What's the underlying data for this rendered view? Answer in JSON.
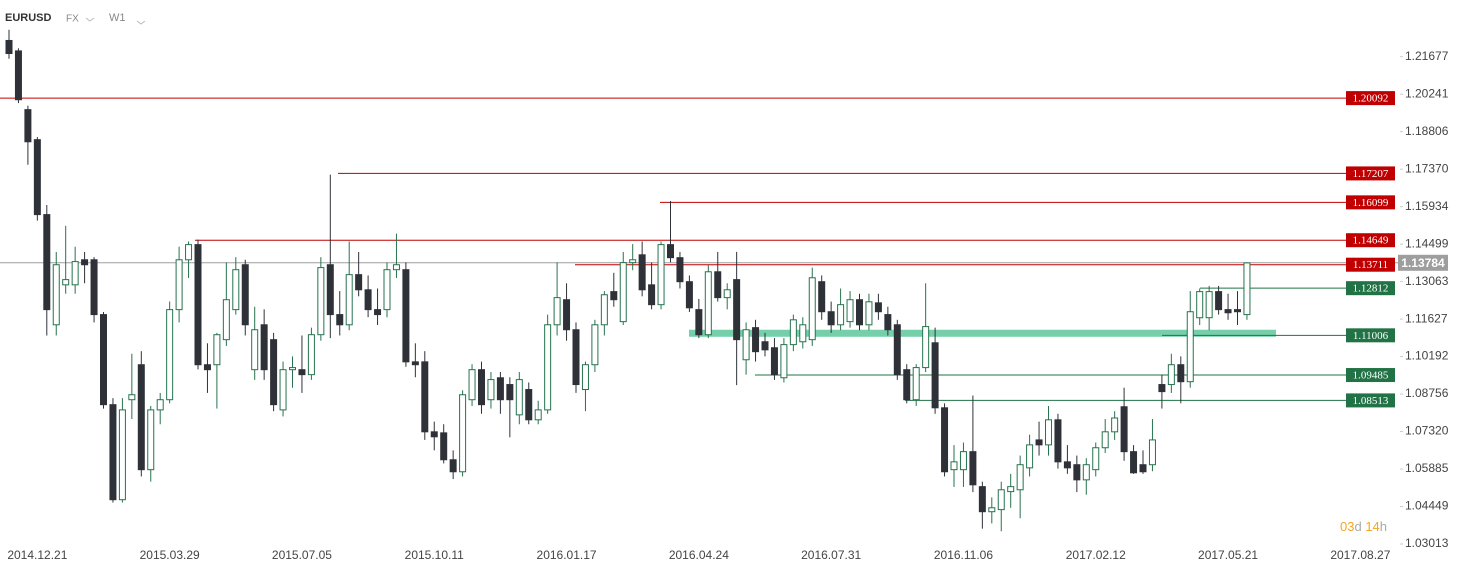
{
  "chart_data": {
    "type": "candlestick",
    "symbol": "EURUSD",
    "market": "FX",
    "interval": "W1",
    "countdown": "03d 14h",
    "categories": [
      null,
      null,
      null,
      "2014.12.21",
      null,
      null,
      null,
      null,
      null,
      null,
      null,
      null,
      null,
      null,
      null,
      null,
      null,
      "2015.03.29",
      null,
      null,
      null,
      null,
      null,
      null,
      null,
      null,
      null,
      null,
      null,
      null,
      null,
      "2015.07.05",
      null,
      null,
      null,
      null,
      null,
      null,
      null,
      null,
      null,
      null,
      null,
      null,
      null,
      "2015.10.11",
      null,
      null,
      null,
      null,
      null,
      null,
      null,
      null,
      null,
      null,
      null,
      null,
      null,
      "2016.01.17",
      null,
      null,
      null,
      null,
      null,
      null,
      null,
      null,
      null,
      null,
      null,
      null,
      null,
      "2016.04.24",
      null,
      null,
      null,
      null,
      null,
      null,
      null,
      null,
      null,
      null,
      null,
      null,
      null,
      "2016.07.31",
      null,
      null,
      null,
      null,
      null,
      null,
      null,
      null,
      null,
      null,
      null,
      null,
      null,
      "2016.11.06",
      null,
      null,
      null,
      null,
      null,
      null,
      null,
      null,
      null,
      null,
      null,
      null,
      null,
      "2017.02.12",
      null,
      null,
      null,
      null,
      null,
      null,
      null,
      null,
      null,
      null,
      null,
      null,
      null,
      "2017.05.21",
      null,
      null,
      null,
      null,
      null,
      null,
      null,
      null,
      null,
      null,
      null,
      null,
      null,
      "2017.08.27"
    ],
    "open": [
      1.223,
      1.219,
      1.1965,
      1.185,
      1.1563,
      1.1141,
      1.1294,
      1.1294,
      1.139,
      1.139,
      1.118,
      1.0835,
      1.0471,
      1.0854,
      1.0988,
      1.0586,
      1.0815,
      1.0854,
      1.1199,
      1.139,
      1.1448,
      1.0988,
      1.0988,
      1.1084,
      1.1199,
      1.1371,
      1.0969,
      1.1141,
      1.1084,
      1.0815,
      1.0969,
      1.0969,
      1.095,
      1.1103,
      1.1371,
      1.118,
      1.1141,
      1.1333,
      1.1275,
      1.1199,
      1.1199,
      1.1352,
      1.1352,
      1.0999,
      1.0999,
      1.0731,
      1.0727,
      1.0624,
      1.0578,
      1.0854,
      1.0969,
      1.0854,
      1.0938,
      1.0912,
      1.0796,
      1.0893,
      1.0777,
      1.0815,
      1.1141,
      1.1237,
      1.1122,
      1.0893,
      1.0988,
      1.1141,
      1.1268,
      1.1153,
      1.1379,
      1.1409,
      1.1294,
      1.1218,
      1.1448,
      1.1398,
      1.1306,
      1.1199,
      1.1103,
      1.1344,
      1.1245,
      1.1314,
      1.1007,
      1.113,
      1.1076,
      1.1053,
      1.0938,
      1.1065,
      1.1076,
      1.1084,
      1.1306,
      1.1191,
      1.1141,
      1.1153,
      1.1237,
      1.1141,
      1.1225,
      1.118,
      1.1141,
      1.0969,
      1.0854,
      1.0977,
      1.1072,
      1.0823,
      1.0586,
      1.0586,
      1.0655,
      1.0521,
      1.0425,
      1.0433,
      1.0502,
      1.0509,
      1.0593,
      1.07,
      1.0681,
      1.0777,
      1.0616,
      1.0605,
      1.0547,
      1.0586,
      1.067,
      1.0731,
      1.0827,
      1.0655,
      1.0605,
      1.0605,
      1.0912,
      1.0912,
      1.0988,
      1.0923,
      1.1168,
      1.1168,
      1.1268,
      1.1199,
      1.1199,
      1.118,
      null,
      null,
      null,
      null,
      null,
      null,
      null,
      null,
      null,
      null,
      null,
      null
    ],
    "high": [
      1.2271,
      1.22,
      1.198,
      1.186,
      1.16,
      1.142,
      1.152,
      1.144,
      1.142,
      1.14,
      1.119,
      1.086,
      1.086,
      1.103,
      1.104,
      1.083,
      1.088,
      1.123,
      1.144,
      1.146,
      1.1467,
      1.107,
      1.111,
      1.138,
      1.14,
      1.139,
      1.121,
      1.12,
      1.111,
      1.1,
      1.102,
      1.11,
      1.113,
      1.14,
      1.1716,
      1.127,
      1.146,
      1.142,
      1.133,
      1.128,
      1.138,
      1.149,
      1.138,
      1.107,
      1.104,
      1.077,
      1.076,
      1.066,
      1.089,
      1.099,
      1.1,
      1.096,
      1.096,
      1.094,
      1.096,
      1.092,
      1.085,
      1.118,
      1.138,
      1.13,
      1.115,
      1.1,
      1.116,
      1.127,
      1.134,
      1.142,
      1.145,
      1.146,
      1.138,
      1.146,
      1.1615,
      1.142,
      1.133,
      1.124,
      1.137,
      1.142,
      1.13,
      1.142,
      1.115,
      1.116,
      1.111,
      1.109,
      1.109,
      1.118,
      1.117,
      1.136,
      1.133,
      1.123,
      1.128,
      1.127,
      1.126,
      1.126,
      1.126,
      1.121,
      1.116,
      1.099,
      1.099,
      1.13,
      1.113,
      1.084,
      1.068,
      1.069,
      1.087,
      1.054,
      1.048,
      1.054,
      1.057,
      1.064,
      1.072,
      1.077,
      1.083,
      1.08,
      1.068,
      1.064,
      1.063,
      1.069,
      1.078,
      1.081,
      1.09,
      1.068,
      1.066,
      1.078,
      1.095,
      1.103,
      1.102,
      1.127,
      1.128,
      1.129,
      1.129,
      1.126,
      1.127,
      1.138,
      null,
      null,
      null,
      null,
      null,
      null,
      null,
      null,
      null,
      null,
      null,
      null
    ],
    "low": [
      1.216,
      1.199,
      1.1754,
      1.154,
      1.11,
      1.11,
      1.126,
      1.126,
      1.13,
      1.115,
      1.082,
      1.046,
      1.046,
      1.078,
      1.056,
      1.054,
      1.076,
      1.084,
      1.115,
      1.132,
      1.097,
      1.088,
      1.082,
      1.106,
      1.118,
      1.11,
      1.093,
      1.093,
      1.081,
      1.079,
      1.09,
      1.088,
      1.093,
      1.108,
      1.109,
      1.11,
      1.112,
      1.125,
      1.117,
      1.114,
      1.117,
      1.132,
      1.098,
      1.094,
      1.07,
      1.066,
      1.061,
      1.055,
      1.056,
      1.083,
      1.08,
      1.082,
      1.08,
      1.071,
      1.076,
      1.076,
      1.076,
      1.08,
      1.11,
      1.108,
      1.088,
      1.081,
      1.096,
      1.11,
      1.121,
      1.114,
      1.135,
      1.125,
      1.12,
      1.12,
      1.138,
      1.128,
      1.119,
      1.109,
      1.109,
      1.123,
      1.12,
      1.091,
      1.095,
      1.1,
      1.102,
      1.093,
      1.092,
      1.104,
      1.105,
      1.106,
      1.116,
      1.111,
      1.112,
      1.113,
      1.112,
      1.112,
      1.116,
      1.11,
      1.093,
      1.084,
      1.083,
      1.096,
      1.08,
      1.056,
      1.052,
      1.052,
      1.05,
      1.036,
      1.038,
      1.035,
      1.044,
      1.04,
      1.056,
      1.064,
      1.064,
      1.059,
      1.057,
      1.05,
      1.049,
      1.056,
      1.065,
      1.07,
      1.062,
      1.057,
      1.057,
      1.058,
      1.082,
      1.088,
      1.084,
      1.09,
      1.114,
      1.112,
      1.118,
      1.116,
      1.114,
      1.116,
      null,
      null,
      null,
      null,
      null,
      null,
      null,
      null,
      null,
      null,
      null,
      null
    ],
    "close": [
      1.218,
      1.2003,
      1.1842,
      1.1563,
      1.1199,
      1.1371,
      1.1314,
      1.1383,
      1.1371,
      1.118,
      1.0835,
      1.0471,
      1.0815,
      1.0873,
      1.0586,
      1.0815,
      1.0854,
      1.1199,
      1.139,
      1.1448,
      1.0988,
      1.0969,
      1.1103,
      1.1237,
      1.1352,
      1.1141,
      1.1122,
      1.0969,
      1.0835,
      1.0969,
      1.0977,
      1.095,
      1.1103,
      1.136,
      1.118,
      1.1141,
      1.1333,
      1.1275,
      1.1199,
      1.118,
      1.1352,
      1.1371,
      1.0999,
      1.0988,
      1.0731,
      1.0712,
      1.0624,
      1.0578,
      1.0873,
      1.0969,
      1.0835,
      1.0931,
      1.0854,
      1.0854,
      1.0931,
      1.0777,
      1.0815,
      1.1141,
      1.1245,
      1.1122,
      1.0912,
      1.0988,
      1.1141,
      1.1256,
      1.1237,
      1.1379,
      1.139,
      1.1275,
      1.1218,
      1.1448,
      1.1398,
      1.1306,
      1.1206,
      1.1103,
      1.1344,
      1.1245,
      1.1275,
      1.1084,
      1.1122,
      1.1038,
      1.1045,
      1.095,
      1.1065,
      1.116,
      1.1141,
      1.1321,
      1.1191,
      1.1141,
      1.1218,
      1.1237,
      1.1141,
      1.1229,
      1.1191,
      1.1122,
      1.095,
      1.0854,
      1.0977,
      1.1134,
      1.0823,
      1.0578,
      1.0616,
      1.0655,
      1.0528,
      1.0425,
      1.044,
      1.0509,
      1.0521,
      1.0605,
      1.0681,
      1.0681,
      1.0777,
      1.0616,
      1.0593,
      1.0547,
      1.0605,
      1.067,
      1.0731,
      1.0784,
      1.0655,
      1.0574,
      1.0578,
      1.07,
      1.0885,
      1.0988,
      1.0923,
      1.1191,
      1.1268,
      1.1268,
      1.1199,
      1.1187,
      1.1191,
      1.1378,
      null,
      null,
      null,
      null,
      null,
      null,
      null,
      null,
      null,
      null,
      null,
      null
    ],
    "up_color": "#ffffff",
    "up_border": "#26734d",
    "down_color": "#2e3238",
    "ylim": [
      1.024,
      1.2385
    ],
    "yticks": [
      1.21677,
      1.20241,
      1.18806,
      {
        "value": 1.1737,
        "label": "1.17370"
      },
      1.15934,
      1.14499,
      1.13063,
      1.11627,
      1.10192,
      1.08756,
      {
        "value": 1.0732,
        "label": "1.07320"
      },
      1.05885,
      1.04449,
      1.03013
    ],
    "current_price": {
      "value": 1.13784,
      "color": "#9e9e9e"
    },
    "levels": [
      {
        "value": 1.20092,
        "color": "#c00000"
      },
      {
        "value": 1.17207,
        "color": "#c00000"
      },
      {
        "value": 1.16099,
        "color": "#c00000"
      },
      {
        "value": 1.14649,
        "color": "#c00000"
      },
      {
        "value": 1.13711,
        "color": "#c00000"
      },
      {
        "value": 1.12812,
        "color": "#217346"
      },
      {
        "value": 1.11006,
        "color": "#217346"
      },
      {
        "value": 1.09485,
        "color": "#217346"
      },
      {
        "value": 1.08513,
        "color": "#217346"
      }
    ],
    "zone": {
      "low": 1.1095,
      "high": 1.1122,
      "color": "#5cc79b"
    }
  }
}
